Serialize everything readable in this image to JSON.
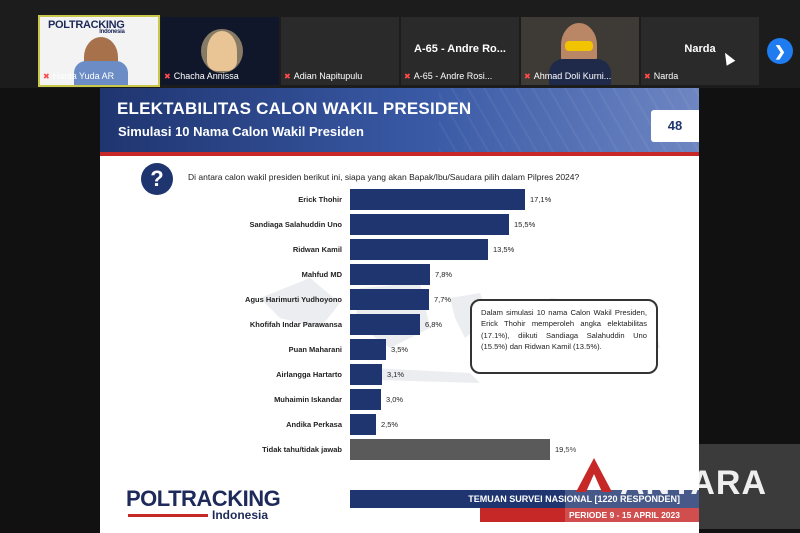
{
  "participants": [
    {
      "name": "Hanta Yuda AR",
      "muted": true,
      "active": true,
      "logo_text": "POLTRACKING",
      "logo_sub": "Indonesia"
    },
    {
      "name": "Chacha Annissa",
      "muted": true
    },
    {
      "name": "Adian Napitupulu",
      "muted": true
    },
    {
      "name": "A-65 - Andre Rosi...",
      "muted": true,
      "center_label": "A-65 - Andre Ro..."
    },
    {
      "name": "Ahmad Doli Kurni...",
      "muted": true
    },
    {
      "name": "Narda",
      "muted": true,
      "center_label": "Narda"
    }
  ],
  "next_icon": "chevron-right-icon",
  "slide": {
    "title": "ELEKTABILITAS CALON WAKIL PRESIDEN",
    "subtitle": "Simulasi 10 Nama Calon Wakil Presiden",
    "page_number": "48",
    "question_mark": "?",
    "question": "Di antara calon wakil presiden berikut ini, siapa yang akan Bapak/Ibu/Saudara pilih dalam Pilpres 2024?",
    "callout": "Dalam simulasi 10 nama Calon Wakil Presiden, Erick Thohir memperoleh angka elektabilitas (17.1%), diikuti Sandiaga Salahuddin Uno (15.5%) dan Ridwan Kamil (13.5%).",
    "footer_brand": "POLTRACKING",
    "footer_brand_sub": "Indonesia",
    "footer_survey": "TEMUAN SURVEI NASIONAL [1220 RESPONDEN]",
    "footer_period": "PERIODE 9 - 15 APRIL 2023"
  },
  "chart_data": {
    "type": "bar",
    "orientation": "horizontal",
    "categories": [
      "Erick Thohir",
      "Sandiaga Salahuddin Uno",
      "Ridwan Kamil",
      "Mahfud MD",
      "Agus Harimurti Yudhoyono",
      "Khofifah Indar Parawansa",
      "Puan Maharani",
      "Airlangga Hartarto",
      "Muhaimin Iskandar",
      "Andika Perkasa",
      "Tidak tahu/tidak jawab"
    ],
    "values": [
      17.1,
      15.5,
      13.5,
      7.8,
      7.7,
      6.8,
      3.5,
      3.1,
      3.0,
      2.5,
      19.5
    ],
    "value_labels": [
      "17,1%",
      "15,5%",
      "13,5%",
      "7,8%",
      "7,7%",
      "6,8%",
      "3,5%",
      "3,1%",
      "3,0%",
      "2,5%",
      "19,5%"
    ],
    "colors": [
      "#1f3570",
      "#1f3570",
      "#1f3570",
      "#1f3570",
      "#1f3570",
      "#1f3570",
      "#1f3570",
      "#1f3570",
      "#1f3570",
      "#1f3570",
      "#5a5a5a"
    ],
    "xlim": [
      0,
      20
    ]
  },
  "watermark": {
    "text": "ANTARA"
  },
  "colors": {
    "brand_blue": "#1f3570",
    "accent_red": "#c62828",
    "zoom_blue": "#1e7bf0"
  }
}
